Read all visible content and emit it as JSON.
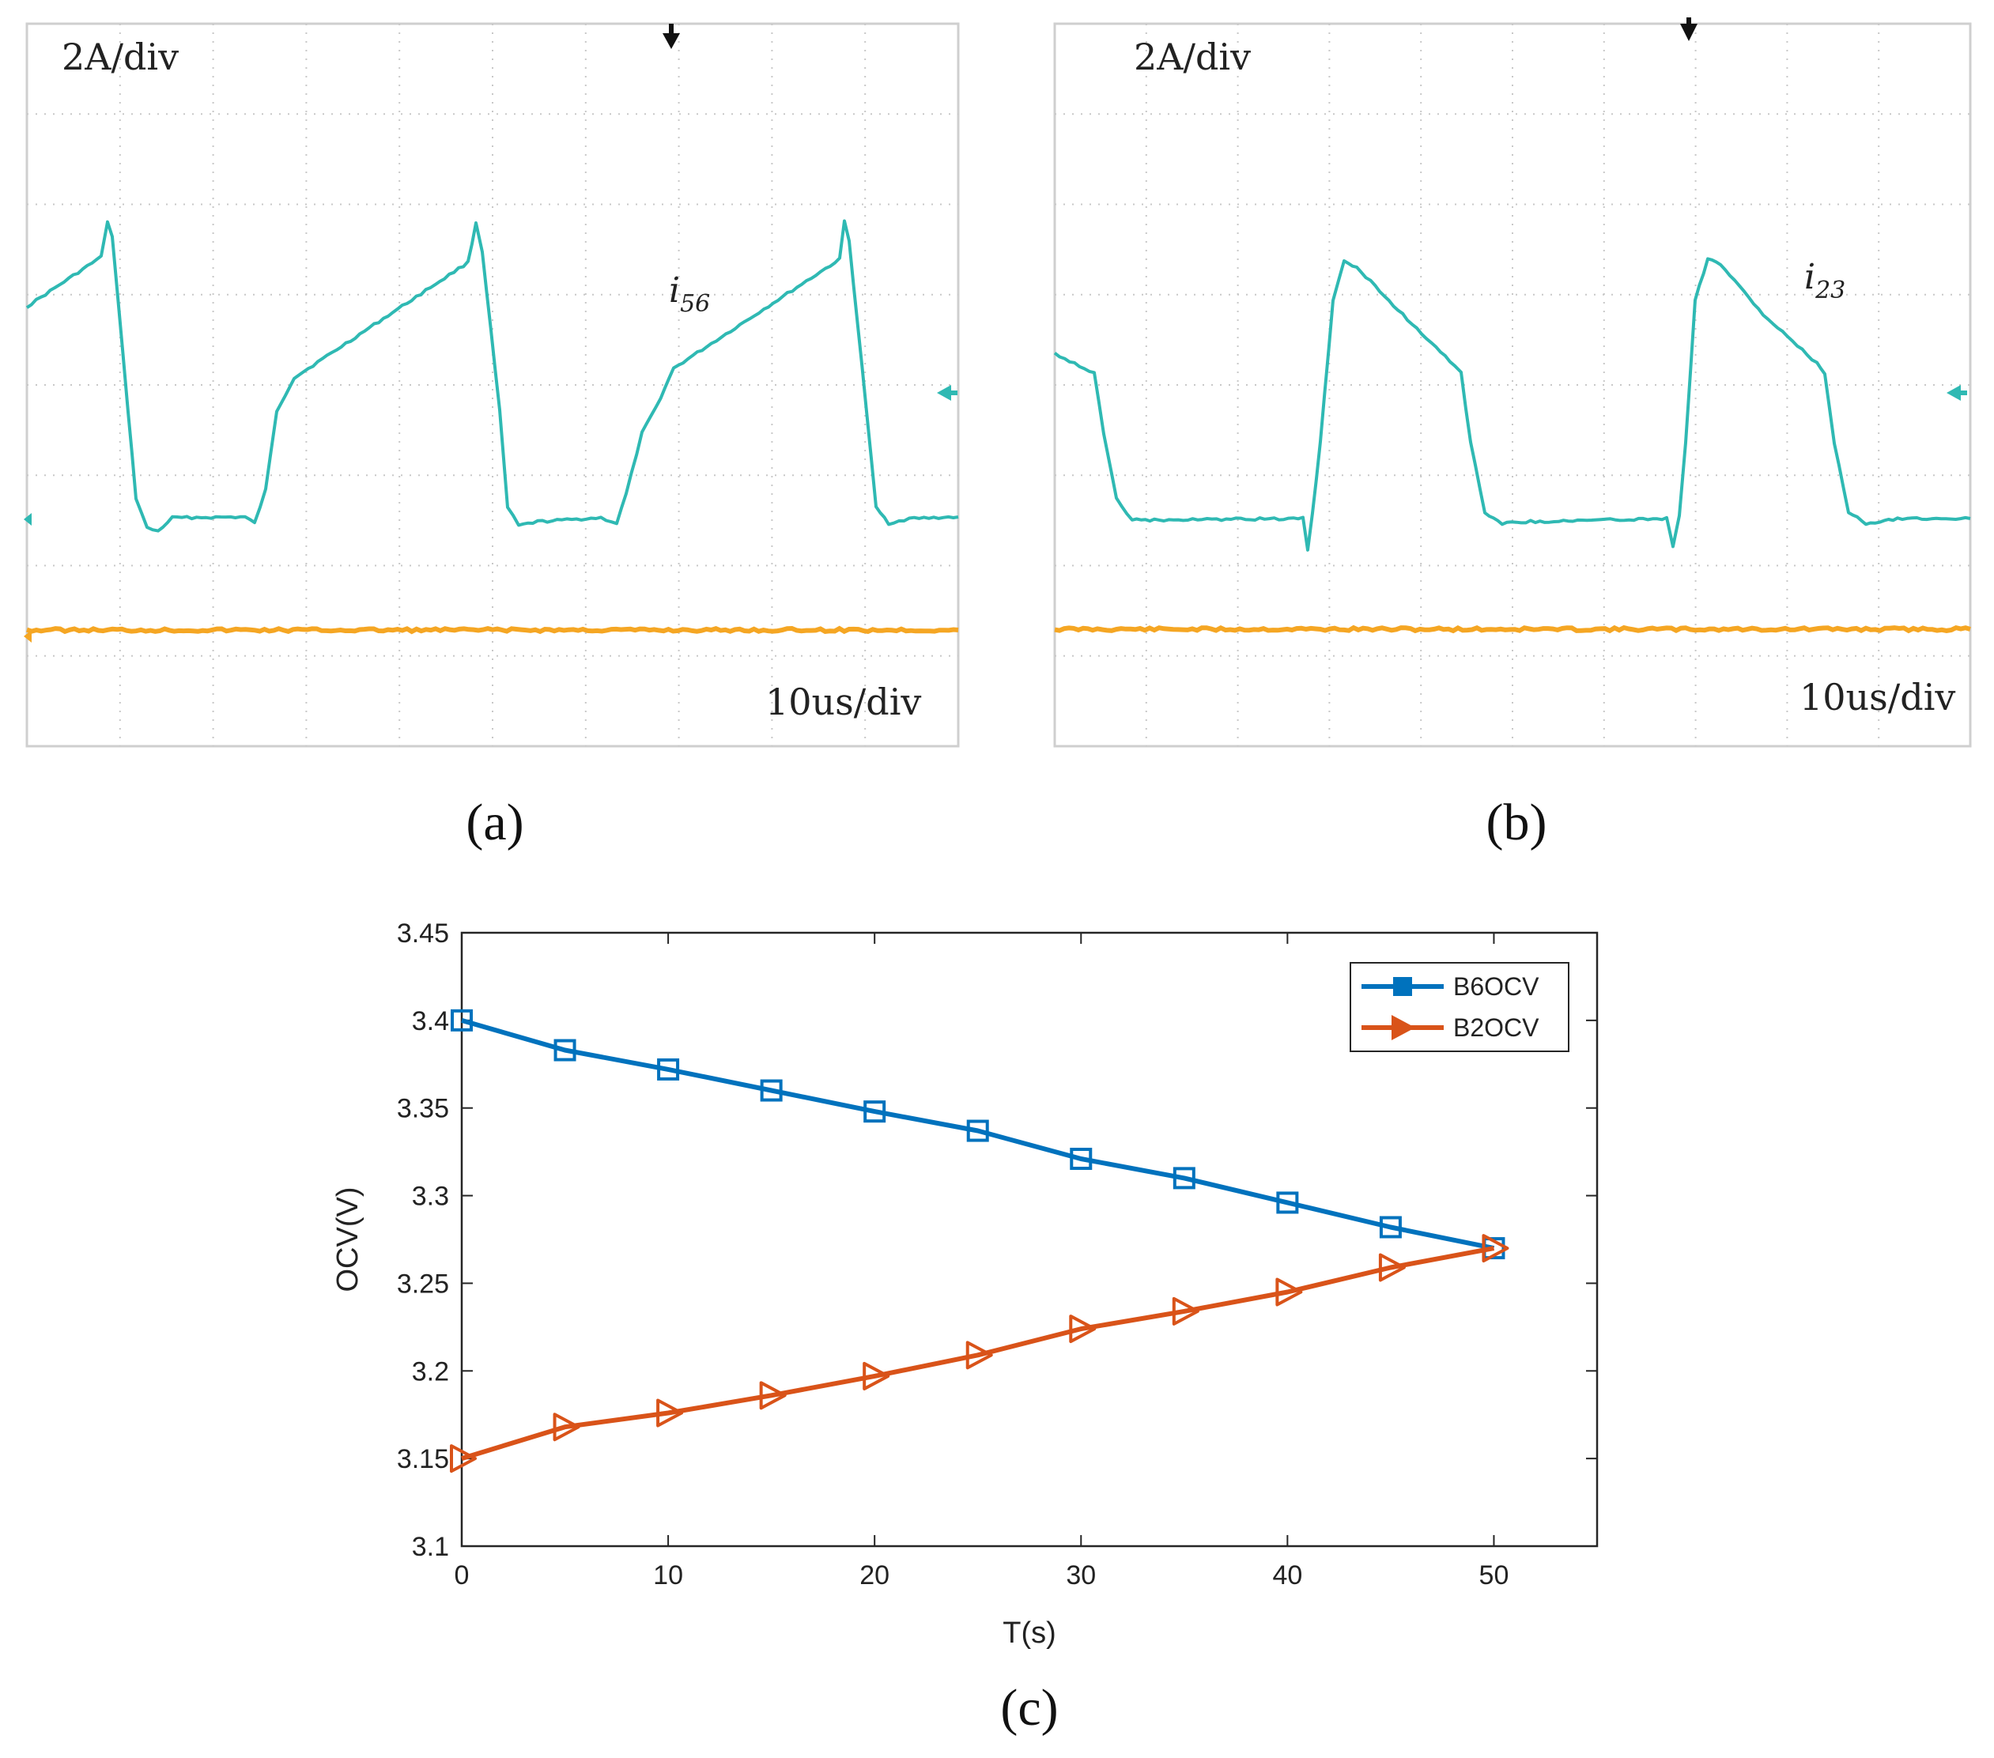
{
  "panels": {
    "a": {
      "caption": "(a)",
      "scale_label": "2A/div",
      "time_label": "10us/div",
      "signal_label": "i",
      "signal_subscript": "56",
      "trace_color": "#2fb9b3",
      "ref_color": "#f5a623"
    },
    "b": {
      "caption": "(b)",
      "scale_label": "2A/div",
      "time_label": "10us/div",
      "signal_label": "i",
      "signal_subscript": "23",
      "trace_color": "#2fb9b3",
      "ref_color": "#f5a623"
    },
    "c": {
      "caption": "(c)"
    }
  },
  "chart_data": {
    "type": "line",
    "title": "",
    "xlabel": "T(s)",
    "ylabel": "OCV(V)",
    "xlim": [
      0,
      55
    ],
    "ylim": [
      3.1,
      3.45
    ],
    "xticks": [
      "0",
      "10",
      "20",
      "30",
      "40",
      "50"
    ],
    "yticks": [
      "3.1",
      "3.15",
      "3.2",
      "3.25",
      "3.3",
      "3.35",
      "3.4",
      "3.45"
    ],
    "grid": false,
    "legend_position": "top-right",
    "x": [
      0,
      5,
      10,
      15,
      20,
      25,
      30,
      35,
      40,
      45,
      50
    ],
    "series": [
      {
        "name": "B6OCV",
        "marker": "square",
        "color": "#0072bd",
        "values": [
          3.4,
          3.383,
          3.372,
          3.36,
          3.348,
          3.337,
          3.321,
          3.31,
          3.296,
          3.282,
          3.27
        ]
      },
      {
        "name": "B2OCV",
        "marker": "triangle-right",
        "color": "#d95319",
        "values": [
          3.15,
          3.168,
          3.176,
          3.186,
          3.197,
          3.209,
          3.224,
          3.234,
          3.245,
          3.259,
          3.27
        ]
      }
    ]
  }
}
